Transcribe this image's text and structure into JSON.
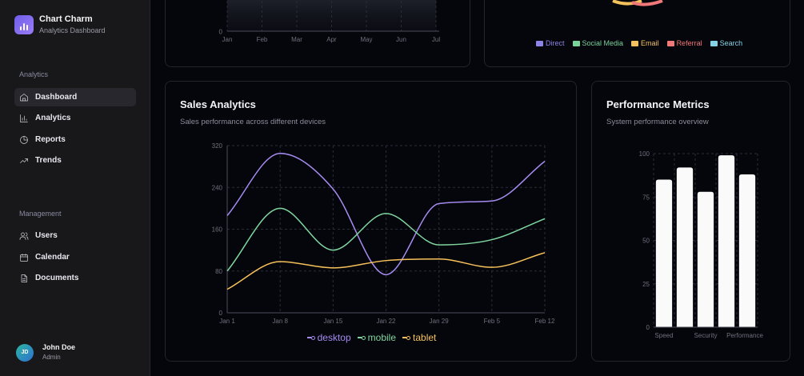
{
  "brand": {
    "name": "Chart Charm",
    "subtitle": "Analytics Dashboard"
  },
  "sidebar": {
    "sections": [
      {
        "label": "Analytics",
        "items": [
          {
            "label": "Dashboard",
            "icon": "home-icon",
            "active": true
          },
          {
            "label": "Analytics",
            "icon": "bar-chart-icon",
            "active": false
          },
          {
            "label": "Reports",
            "icon": "pie-chart-icon",
            "active": false
          },
          {
            "label": "Trends",
            "icon": "trending-up-icon",
            "active": false
          }
        ]
      },
      {
        "label": "Management",
        "items": [
          {
            "label": "Users",
            "icon": "users-icon",
            "active": false
          },
          {
            "label": "Calendar",
            "icon": "calendar-icon",
            "active": false
          },
          {
            "label": "Documents",
            "icon": "document-icon",
            "active": false
          }
        ]
      }
    ]
  },
  "user": {
    "initials": "JD",
    "name": "John Doe",
    "role": "Admin"
  },
  "colors": {
    "accent": "#6d5ee8",
    "desktop": "#a68bf0",
    "mobile": "#7fd6a0",
    "tablet": "#f6c15a",
    "bars": "#fafafa"
  },
  "top_left_chart": {
    "months": [
      "Jan",
      "Feb",
      "Mar",
      "Apr",
      "May",
      "Jun",
      "Jul"
    ],
    "y_tick_visible": "0"
  },
  "top_right_legend": [
    {
      "label": "Direct",
      "color": "#8c84e6"
    },
    {
      "label": "Social Media",
      "color": "#79d39a"
    },
    {
      "label": "Email",
      "color": "#f4c25c"
    },
    {
      "label": "Referral",
      "color": "#f07878"
    },
    {
      "label": "Search",
      "color": "#83d2e8"
    }
  ],
  "sales": {
    "title": "Sales Analytics",
    "subtitle": "Sales performance across different devices"
  },
  "performance": {
    "title": "Performance Metrics",
    "subtitle": "System performance overview"
  },
  "chart_data": [
    {
      "type": "line",
      "title": "Sales Analytics",
      "x": [
        "Jan 1",
        "Jan 8",
        "Jan 15",
        "Jan 22",
        "Jan 29",
        "Feb 5",
        "Feb 12"
      ],
      "ylim": [
        0,
        320
      ],
      "yticks": [
        "0",
        "80",
        "160",
        "240",
        "320"
      ],
      "grid": true,
      "legend_position": "bottom",
      "series": [
        {
          "name": "desktop",
          "color": "#a68bf0",
          "values": [
            186,
            305,
            237,
            73,
            209,
            214,
            290
          ]
        },
        {
          "name": "mobile",
          "color": "#7fd6a0",
          "values": [
            80,
            200,
            120,
            190,
            130,
            140,
            180
          ]
        },
        {
          "name": "tablet",
          "color": "#f6c15a",
          "values": [
            45,
            98,
            86,
            100,
            103,
            87,
            115
          ]
        }
      ]
    },
    {
      "type": "bar",
      "title": "Performance Metrics",
      "categories": [
        "Speed",
        "",
        "Security",
        "",
        "Performance"
      ],
      "ylim": [
        0,
        100
      ],
      "yticks": [
        "0",
        "25",
        "50",
        "75",
        "100"
      ],
      "grid": true,
      "values": [
        85,
        92,
        78,
        99,
        88
      ]
    }
  ]
}
